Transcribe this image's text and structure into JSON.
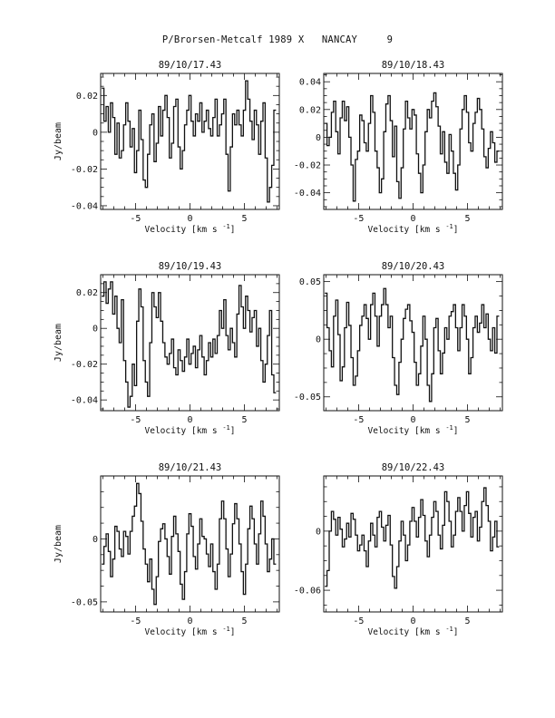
{
  "page": {
    "title": "P/Brorsen-Metcalf 1989 X   NANCAY     9"
  },
  "chart_data": [
    {
      "type": "line",
      "title": "89/10/17.43",
      "xlabel": "Velocity [km s",
      "xlabel_sup": "-1",
      "xlabel_suffix": "]",
      "ylabel": "Jy/beam",
      "xlim": [
        -8.2,
        8.2
      ],
      "ylim": [
        -0.042,
        0.032
      ],
      "xticks": [
        -5,
        0,
        5
      ],
      "yticks": [
        0.02,
        0,
        -0.02,
        -0.04
      ],
      "series": [
        {
          "x0": -8.0,
          "dx": 0.2,
          "values": [
            0.024,
            0.006,
            0.014,
            0.0,
            0.016,
            0.008,
            -0.012,
            0.005,
            -0.014,
            -0.01,
            0.004,
            0.016,
            0.006,
            -0.008,
            0.002,
            -0.022,
            -0.01,
            0.012,
            -0.004,
            -0.026,
            -0.03,
            -0.012,
            0.004,
            0.01,
            -0.016,
            -0.006,
            0.014,
            -0.002,
            0.012,
            0.02,
            0.008,
            -0.014,
            -0.006,
            0.014,
            0.018,
            -0.008,
            -0.02,
            -0.01,
            0.004,
            0.012,
            0.02,
            0.006,
            -0.002,
            0.01,
            0.006,
            0.016,
            0.0,
            0.006,
            0.012,
            0.002,
            -0.002,
            0.008,
            0.018,
            -0.002,
            0.004,
            0.01,
            0.018,
            -0.012,
            -0.032,
            -0.008,
            0.01,
            0.004,
            0.012,
            0.004,
            -0.002,
            0.012,
            0.028,
            0.018,
            0.006,
            -0.004,
            0.012,
            0.004,
            -0.012,
            0.006,
            0.016,
            -0.014,
            -0.038,
            -0.03,
            -0.018,
            0.012
          ]
        }
      ]
    },
    {
      "type": "line",
      "title": "89/10/18.43",
      "xlabel": "Velocity [km s",
      "xlabel_sup": "-1",
      "xlabel_suffix": "]",
      "ylabel": "",
      "xlim": [
        -8.2,
        8.2
      ],
      "ylim": [
        -0.052,
        0.046
      ],
      "xticks": [
        -5,
        0,
        5
      ],
      "yticks": [
        0.04,
        0.02,
        0,
        -0.02,
        -0.04
      ],
      "series": [
        {
          "x0": -8.0,
          "dx": 0.2,
          "values": [
            0.01,
            -0.006,
            0.0,
            0.018,
            0.026,
            0.004,
            -0.012,
            0.014,
            0.026,
            0.012,
            0.022,
            0.0,
            -0.02,
            -0.046,
            -0.016,
            -0.01,
            0.016,
            0.012,
            -0.004,
            -0.01,
            0.01,
            0.03,
            0.018,
            -0.01,
            -0.022,
            -0.04,
            -0.03,
            0.004,
            0.024,
            0.03,
            0.012,
            -0.014,
            0.008,
            -0.032,
            -0.044,
            -0.022,
            0.006,
            0.026,
            0.014,
            0.006,
            0.02,
            0.016,
            -0.012,
            -0.026,
            -0.04,
            -0.02,
            0.004,
            0.02,
            0.014,
            0.026,
            0.032,
            0.022,
            0.008,
            -0.012,
            0.004,
            -0.018,
            -0.026,
            0.002,
            -0.01,
            -0.026,
            -0.038,
            -0.02,
            0.006,
            0.02,
            0.03,
            0.018,
            -0.004,
            -0.01,
            0.01,
            0.018,
            0.028,
            0.02,
            0.006,
            -0.014,
            -0.022,
            -0.008,
            0.004,
            -0.004,
            -0.018,
            -0.01
          ]
        }
      ]
    },
    {
      "type": "line",
      "title": "89/10/19.43",
      "xlabel": "Velocity [km s",
      "xlabel_sup": "-1",
      "xlabel_suffix": "]",
      "ylabel": "Jy/beam",
      "xlim": [
        -8.2,
        8.2
      ],
      "ylim": [
        -0.046,
        0.03
      ],
      "xticks": [
        -5,
        0,
        5
      ],
      "yticks": [
        0.02,
        0,
        -0.02,
        -0.04
      ],
      "series": [
        {
          "x0": -8.0,
          "dx": 0.2,
          "values": [
            0.018,
            0.026,
            0.014,
            0.022,
            0.026,
            0.008,
            0.018,
            0.0,
            -0.008,
            0.016,
            -0.018,
            -0.03,
            -0.044,
            -0.038,
            -0.02,
            -0.032,
            0.004,
            0.022,
            0.012,
            -0.018,
            -0.03,
            -0.038,
            -0.008,
            0.02,
            0.012,
            0.006,
            0.02,
            0.004,
            -0.008,
            -0.016,
            -0.02,
            -0.014,
            -0.006,
            -0.022,
            -0.026,
            -0.012,
            -0.018,
            -0.024,
            -0.016,
            -0.006,
            -0.02,
            -0.014,
            -0.01,
            -0.022,
            -0.012,
            -0.004,
            -0.016,
            -0.026,
            -0.018,
            -0.008,
            -0.016,
            -0.006,
            -0.014,
            -0.004,
            0.01,
            0.0,
            0.016,
            -0.004,
            -0.012,
            0.0,
            -0.008,
            -0.016,
            0.008,
            0.024,
            0.012,
            0.0,
            0.018,
            0.01,
            -0.002,
            0.006,
            0.01,
            -0.01,
            0.0,
            -0.018,
            -0.03,
            -0.02,
            -0.004,
            0.01,
            -0.026,
            -0.036
          ]
        }
      ]
    },
    {
      "type": "line",
      "title": "89/10/20.43",
      "xlabel": "Velocity [km s",
      "xlabel_sup": "-1",
      "xlabel_suffix": "]",
      "ylabel": "",
      "xlim": [
        -8.2,
        8.2
      ],
      "ylim": [
        -0.062,
        0.056
      ],
      "xticks": [
        -5,
        0,
        5
      ],
      "yticks": [
        0.05,
        0,
        -0.05
      ],
      "series": [
        {
          "x0": -8.0,
          "dx": 0.2,
          "values": [
            0.04,
            0.01,
            -0.01,
            -0.024,
            0.02,
            0.034,
            0.004,
            -0.036,
            -0.024,
            0.01,
            0.032,
            0.012,
            -0.016,
            -0.04,
            -0.032,
            -0.01,
            0.012,
            0.02,
            0.03,
            0.018,
            0.0,
            0.03,
            0.04,
            0.02,
            -0.006,
            0.02,
            0.03,
            0.044,
            0.03,
            0.01,
            0.02,
            -0.016,
            -0.04,
            -0.048,
            -0.02,
            0.0,
            0.018,
            0.026,
            0.03,
            0.016,
            0.006,
            -0.02,
            -0.04,
            -0.03,
            -0.006,
            0.02,
            0.0,
            -0.04,
            -0.054,
            -0.03,
            0.01,
            0.018,
            -0.01,
            -0.03,
            -0.012,
            0.01,
            0.0,
            0.02,
            0.024,
            0.03,
            0.01,
            -0.01,
            0.01,
            0.03,
            0.02,
            0.0,
            -0.03,
            -0.016,
            0.01,
            0.02,
            0.006,
            0.014,
            0.03,
            0.01,
            0.022,
            0.0,
            -0.01,
            0.01,
            -0.012,
            0.02
          ]
        }
      ]
    },
    {
      "type": "line",
      "title": "89/10/21.43",
      "xlabel": "Velocity [km s",
      "xlabel_sup": "-1",
      "xlabel_suffix": "]",
      "ylabel": "Jy/beam",
      "xlim": [
        -8.2,
        8.2
      ],
      "ylim": [
        -0.058,
        0.05
      ],
      "xticks": [
        -5,
        0,
        5
      ],
      "yticks": [
        0,
        -0.05
      ],
      "series": [
        {
          "x0": -8.0,
          "dx": 0.2,
          "values": [
            -0.02,
            -0.006,
            0.004,
            -0.01,
            -0.03,
            -0.016,
            0.01,
            0.006,
            -0.008,
            -0.014,
            0.006,
            0.002,
            -0.012,
            0.006,
            0.018,
            0.026,
            0.044,
            0.036,
            0.014,
            -0.008,
            -0.02,
            -0.034,
            -0.016,
            -0.04,
            -0.052,
            -0.03,
            -0.002,
            0.008,
            0.012,
            0.0,
            -0.014,
            -0.028,
            0.002,
            0.018,
            0.004,
            -0.01,
            -0.036,
            -0.048,
            -0.026,
            0.004,
            0.02,
            0.01,
            -0.014,
            -0.024,
            -0.004,
            0.016,
            0.002,
            0.0,
            -0.012,
            -0.022,
            -0.004,
            -0.026,
            -0.04,
            -0.02,
            0.016,
            0.03,
            0.016,
            -0.008,
            -0.03,
            -0.012,
            0.012,
            0.028,
            0.016,
            -0.004,
            -0.026,
            -0.044,
            -0.02,
            0.008,
            0.026,
            0.016,
            -0.004,
            -0.02,
            0.004,
            0.03,
            0.018,
            -0.004,
            -0.026,
            -0.016,
            0.0,
            -0.02
          ]
        }
      ]
    },
    {
      "type": "line",
      "title": "89/10/22.43",
      "xlabel": "Velocity [km s",
      "xlabel_sup": "-1",
      "xlabel_suffix": "]",
      "ylabel": "",
      "xlim": [
        -8.2,
        8.2
      ],
      "ylim": [
        -0.082,
        0.056
      ],
      "xticks": [
        -5,
        0,
        5
      ],
      "yticks": [
        0,
        -0.06
      ],
      "series": [
        {
          "x0": -8.0,
          "dx": 0.2,
          "values": [
            -0.056,
            -0.04,
            0.0,
            0.02,
            0.012,
            -0.004,
            0.014,
            0.002,
            -0.016,
            -0.008,
            0.008,
            -0.006,
            0.018,
            0.012,
            -0.004,
            -0.02,
            -0.014,
            -0.004,
            -0.02,
            -0.036,
            -0.01,
            0.008,
            -0.004,
            -0.016,
            0.014,
            0.02,
            0.004,
            -0.01,
            0.006,
            0.016,
            -0.014,
            -0.046,
            -0.058,
            -0.036,
            -0.01,
            0.01,
            -0.004,
            -0.03,
            -0.014,
            0.01,
            0.024,
            0.01,
            -0.006,
            0.014,
            0.032,
            0.016,
            -0.01,
            -0.026,
            -0.004,
            0.014,
            0.03,
            0.02,
            -0.004,
            -0.018,
            0.006,
            0.04,
            0.03,
            0.01,
            -0.016,
            -0.004,
            0.02,
            0.034,
            0.02,
            0.0,
            0.026,
            0.04,
            0.018,
            -0.006,
            0.014,
            0.02,
            -0.01,
            0.004,
            0.03,
            0.044,
            0.026,
            0.01,
            -0.02,
            -0.006,
            0.01,
            -0.016
          ]
        }
      ]
    }
  ]
}
